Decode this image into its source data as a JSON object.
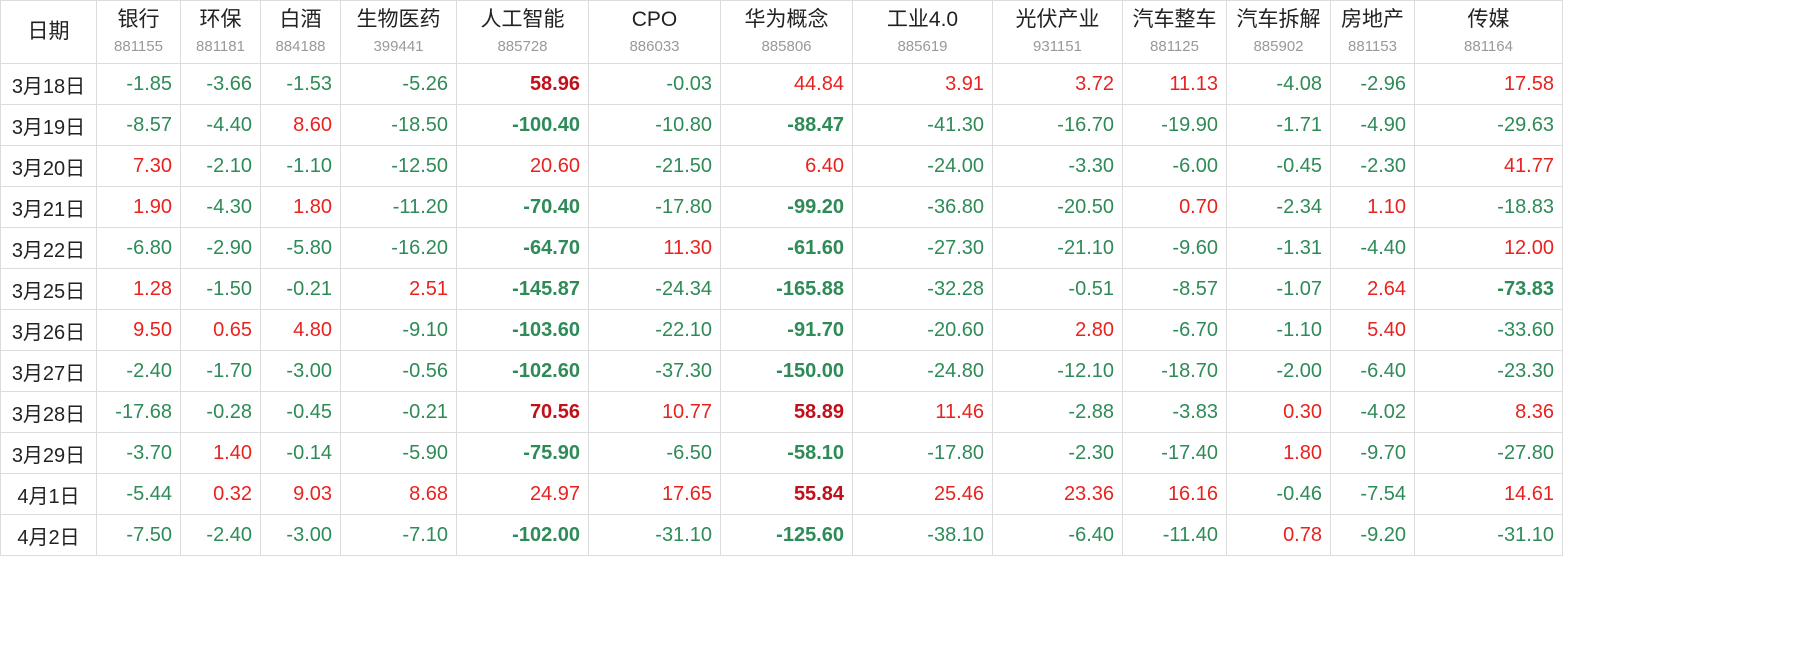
{
  "header": {
    "date_label": "日期",
    "columns": [
      {
        "name": "银行",
        "code": "881155"
      },
      {
        "name": "环保",
        "code": "881181"
      },
      {
        "name": "白酒",
        "code": "884188"
      },
      {
        "name": "生物医药",
        "code": "399441"
      },
      {
        "name": "人工智能",
        "code": "885728"
      },
      {
        "name": "CPO",
        "code": "886033"
      },
      {
        "name": "华为概念",
        "code": "885806"
      },
      {
        "name": "工业4.0",
        "code": "885619"
      },
      {
        "name": "光伏产业",
        "code": "931151"
      },
      {
        "name": "汽车整车",
        "code": "881125"
      },
      {
        "name": "汽车拆解",
        "code": "885902"
      },
      {
        "name": "房地产",
        "code": "881153"
      },
      {
        "name": "传媒",
        "code": "881164"
      }
    ]
  },
  "colors": {
    "positive": "#e8231f",
    "negative": "#2e8b57",
    "bold_positive": "#c0111a"
  },
  "rows": [
    {
      "date": "3月18日",
      "values": [
        "-1.85",
        "-3.66",
        "-1.53",
        "-5.26",
        "58.96",
        "-0.03",
        "44.84",
        "3.91",
        "3.72",
        "11.13",
        "-4.08",
        "-2.96",
        "17.58"
      ],
      "bold": [
        4
      ]
    },
    {
      "date": "3月19日",
      "values": [
        "-8.57",
        "-4.40",
        "8.60",
        "-18.50",
        "-100.40",
        "-10.80",
        "-88.47",
        "-41.30",
        "-16.70",
        "-19.90",
        "-1.71",
        "-4.90",
        "-29.63"
      ],
      "bold": [
        4,
        6
      ]
    },
    {
      "date": "3月20日",
      "values": [
        "7.30",
        "-2.10",
        "-1.10",
        "-12.50",
        "20.60",
        "-21.50",
        "6.40",
        "-24.00",
        "-3.30",
        "-6.00",
        "-0.45",
        "-2.30",
        "41.77"
      ],
      "bold": []
    },
    {
      "date": "3月21日",
      "values": [
        "1.90",
        "-4.30",
        "1.80",
        "-11.20",
        "-70.40",
        "-17.80",
        "-99.20",
        "-36.80",
        "-20.50",
        "0.70",
        "-2.34",
        "1.10",
        "-18.83"
      ],
      "bold": [
        4,
        6
      ]
    },
    {
      "date": "3月22日",
      "values": [
        "-6.80",
        "-2.90",
        "-5.80",
        "-16.20",
        "-64.70",
        "11.30",
        "-61.60",
        "-27.30",
        "-21.10",
        "-9.60",
        "-1.31",
        "-4.40",
        "12.00"
      ],
      "bold": [
        4,
        6
      ]
    },
    {
      "date": "3月25日",
      "values": [
        "1.28",
        "-1.50",
        "-0.21",
        "2.51",
        "-145.87",
        "-24.34",
        "-165.88",
        "-32.28",
        "-0.51",
        "-8.57",
        "-1.07",
        "2.64",
        "-73.83"
      ],
      "bold": [
        4,
        6,
        12
      ]
    },
    {
      "date": "3月26日",
      "values": [
        "9.50",
        "0.65",
        "4.80",
        "-9.10",
        "-103.60",
        "-22.10",
        "-91.70",
        "-20.60",
        "2.80",
        "-6.70",
        "-1.10",
        "5.40",
        "-33.60"
      ],
      "bold": [
        4,
        6
      ]
    },
    {
      "date": "3月27日",
      "values": [
        "-2.40",
        "-1.70",
        "-3.00",
        "-0.56",
        "-102.60",
        "-37.30",
        "-150.00",
        "-24.80",
        "-12.10",
        "-18.70",
        "-2.00",
        "-6.40",
        "-23.30"
      ],
      "bold": [
        4,
        6
      ]
    },
    {
      "date": "3月28日",
      "values": [
        "-17.68",
        "-0.28",
        "-0.45",
        "-0.21",
        "70.56",
        "10.77",
        "58.89",
        "11.46",
        "-2.88",
        "-3.83",
        "0.30",
        "-4.02",
        "8.36"
      ],
      "bold": [
        4,
        6
      ]
    },
    {
      "date": "3月29日",
      "values": [
        "-3.70",
        "1.40",
        "-0.14",
        "-5.90",
        "-75.90",
        "-6.50",
        "-58.10",
        "-17.80",
        "-2.30",
        "-17.40",
        "1.80",
        "-9.70",
        "-27.80"
      ],
      "bold": [
        4,
        6
      ]
    },
    {
      "date": "4月1日",
      "values": [
        "-5.44",
        "0.32",
        "9.03",
        "8.68",
        "24.97",
        "17.65",
        "55.84",
        "25.46",
        "23.36",
        "16.16",
        "-0.46",
        "-7.54",
        "14.61"
      ],
      "bold": [
        6
      ]
    },
    {
      "date": "4月2日",
      "values": [
        "-7.50",
        "-2.40",
        "-3.00",
        "-7.10",
        "-102.00",
        "-31.10",
        "-125.60",
        "-38.10",
        "-6.40",
        "-11.40",
        "0.78",
        "-9.20",
        "-31.10"
      ],
      "bold": [
        4,
        6
      ]
    }
  ]
}
